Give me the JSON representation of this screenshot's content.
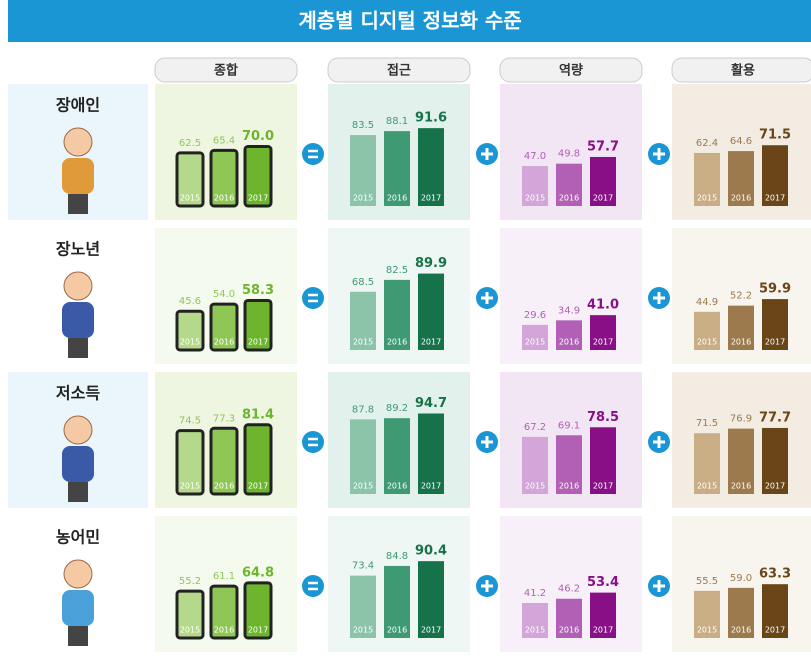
{
  "title": "계층별 디지털 정보화 수준",
  "columns": [
    "종합",
    "접근",
    "역량",
    "활용"
  ],
  "groups": [
    "장애인",
    "장노년",
    "저소득",
    "농어민"
  ],
  "chart_data": [
    {
      "type": "phone",
      "categories": [
        "2015",
        "2016",
        "2017"
      ],
      "values": [
        62.5,
        65.4,
        70.0
      ],
      "value_labels": [
        "62.5",
        "65.4",
        "70.0"
      ],
      "colors": [
        "#b5d98a",
        "#8fc757",
        "#6cb52d"
      ]
    },
    {
      "type": "bar",
      "categories": [
        "2015",
        "2016",
        "2017"
      ],
      "values": [
        83.5,
        88.1,
        91.6
      ],
      "value_labels": [
        "83.5",
        "88.1",
        "91.6"
      ],
      "colors": [
        "#8cc4aa",
        "#3f9a74",
        "#157249"
      ]
    },
    {
      "type": "bar",
      "categories": [
        "2015",
        "2016",
        "2017"
      ],
      "values": [
        47.0,
        49.8,
        57.7
      ],
      "value_labels": [
        "47.0",
        "49.8",
        "57.7"
      ],
      "colors": [
        "#d3a5d8",
        "#b160b6",
        "#880f86"
      ]
    },
    {
      "type": "bar",
      "categories": [
        "2015",
        "2016",
        "2017"
      ],
      "values": [
        62.4,
        64.6,
        71.5
      ],
      "value_labels": [
        "62.4",
        "64.6",
        "71.5"
      ],
      "colors": [
        "#c9ad85",
        "#9c7a4e",
        "#6a4517"
      ]
    },
    {
      "type": "phone",
      "categories": [
        "2015",
        "2016",
        "2017"
      ],
      "values": [
        45.6,
        54.0,
        58.3
      ],
      "value_labels": [
        "45.6",
        "54.0",
        "58.3"
      ],
      "colors": [
        "#b5d98a",
        "#8fc757",
        "#6cb52d"
      ]
    },
    {
      "type": "bar",
      "categories": [
        "2015",
        "2016",
        "2017"
      ],
      "values": [
        68.5,
        82.5,
        89.9
      ],
      "value_labels": [
        "68.5",
        "82.5",
        "89.9"
      ],
      "colors": [
        "#8cc4aa",
        "#3f9a74",
        "#157249"
      ]
    },
    {
      "type": "bar",
      "categories": [
        "2015",
        "2016",
        "2017"
      ],
      "values": [
        29.6,
        34.9,
        41.0
      ],
      "value_labels": [
        "29.6",
        "34.9",
        "41.0"
      ],
      "colors": [
        "#d3a5d8",
        "#b160b6",
        "#880f86"
      ]
    },
    {
      "type": "bar",
      "categories": [
        "2015",
        "2016",
        "2017"
      ],
      "values": [
        44.9,
        52.2,
        59.9
      ],
      "value_labels": [
        "44.9",
        "52.2",
        "59.9"
      ],
      "colors": [
        "#c9ad85",
        "#9c7a4e",
        "#6a4517"
      ]
    },
    {
      "type": "phone",
      "categories": [
        "2015",
        "2016",
        "2017"
      ],
      "values": [
        74.5,
        77.3,
        81.4
      ],
      "value_labels": [
        "74.5",
        "77.3",
        "81.4"
      ],
      "colors": [
        "#b5d98a",
        "#8fc757",
        "#6cb52d"
      ]
    },
    {
      "type": "bar",
      "categories": [
        "2015",
        "2016",
        "2017"
      ],
      "values": [
        87.8,
        89.2,
        94.7
      ],
      "value_labels": [
        "87.8",
        "89.2",
        "94.7"
      ],
      "colors": [
        "#8cc4aa",
        "#3f9a74",
        "#157249"
      ]
    },
    {
      "type": "bar",
      "categories": [
        "2015",
        "2016",
        "2017"
      ],
      "values": [
        67.2,
        69.1,
        78.5
      ],
      "value_labels": [
        "67.2",
        "69.1",
        "78.5"
      ],
      "colors": [
        "#d3a5d8",
        "#b160b6",
        "#880f86"
      ]
    },
    {
      "type": "bar",
      "categories": [
        "2015",
        "2016",
        "2017"
      ],
      "values": [
        71.5,
        76.9,
        77.7
      ],
      "value_labels": [
        "71.5",
        "76.9",
        "77.7"
      ],
      "colors": [
        "#c9ad85",
        "#9c7a4e",
        "#6a4517"
      ]
    },
    {
      "type": "phone",
      "categories": [
        "2015",
        "2016",
        "2017"
      ],
      "values": [
        55.2,
        61.1,
        64.8
      ],
      "value_labels": [
        "55.2",
        "61.1",
        "64.8"
      ],
      "colors": [
        "#b5d98a",
        "#8fc757",
        "#6cb52d"
      ]
    },
    {
      "type": "bar",
      "categories": [
        "2015",
        "2016",
        "2017"
      ],
      "values": [
        73.4,
        84.8,
        90.4
      ],
      "value_labels": [
        "73.4",
        "84.8",
        "90.4"
      ],
      "colors": [
        "#8cc4aa",
        "#3f9a74",
        "#157249"
      ]
    },
    {
      "type": "bar",
      "categories": [
        "2015",
        "2016",
        "2017"
      ],
      "values": [
        41.2,
        46.2,
        53.4
      ],
      "value_labels": [
        "41.2",
        "46.2",
        "53.4"
      ],
      "colors": [
        "#d3a5d8",
        "#b160b6",
        "#880f86"
      ]
    },
    {
      "type": "bar",
      "categories": [
        "2015",
        "2016",
        "2017"
      ],
      "values": [
        55.5,
        59.0,
        63.3
      ],
      "value_labels": [
        "55.5",
        "59.0",
        "63.3"
      ],
      "colors": [
        "#c9ad85",
        "#9c7a4e",
        "#6a4517"
      ]
    }
  ]
}
